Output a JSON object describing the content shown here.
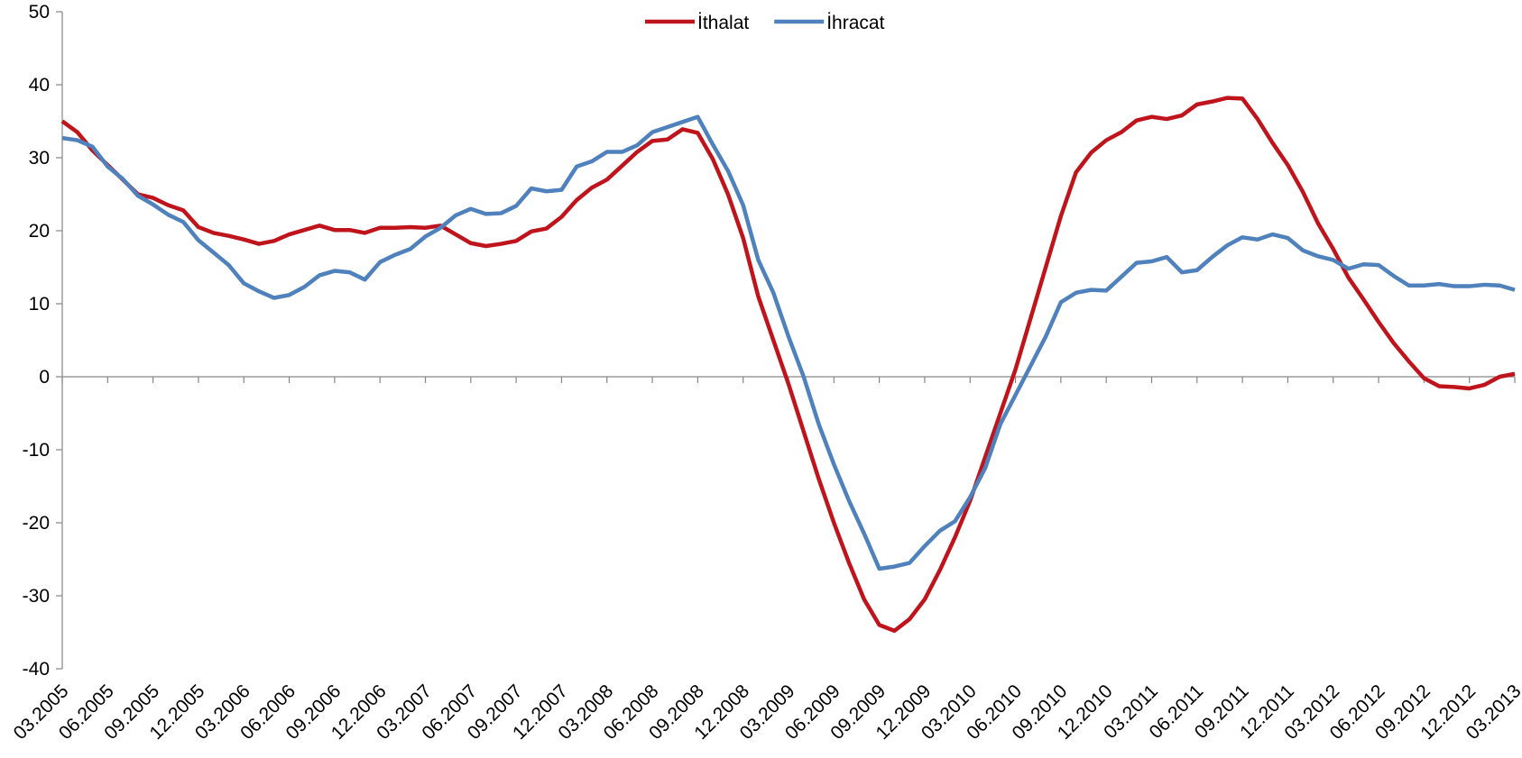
{
  "chart_data": {
    "type": "line",
    "categories": [
      "03.2005",
      null,
      null,
      "06.2005",
      null,
      null,
      "09.2005",
      null,
      null,
      "12.2005",
      null,
      null,
      "03.2006",
      null,
      null,
      "06.2006",
      null,
      null,
      "09.2006",
      null,
      null,
      "12.2006",
      null,
      null,
      "03.2007",
      null,
      null,
      "06.2007",
      null,
      null,
      "09.2007",
      null,
      null,
      "12.2007",
      null,
      null,
      "03.2008",
      null,
      null,
      "06.2008",
      null,
      null,
      "09.2008",
      null,
      null,
      "12.2008",
      null,
      null,
      "03.2009",
      null,
      null,
      "06.2009",
      null,
      null,
      "09.2009",
      null,
      null,
      "12.2009",
      null,
      null,
      "03.2010",
      null,
      null,
      "06.2010",
      null,
      null,
      "09.2010",
      null,
      null,
      "12.2010",
      null,
      null,
      "03.2011",
      null,
      null,
      "06.2011",
      null,
      null,
      "09.2011",
      null,
      null,
      "12.2011",
      null,
      null,
      "03.2012",
      null,
      null,
      "06.2012",
      null,
      null,
      "09.2012",
      null,
      null,
      "12.2012",
      null,
      null,
      "03.2013"
    ],
    "series": [
      {
        "name": "İthalat",
        "color": "#c0141c",
        "values": [
          35,
          33.5,
          31,
          29,
          27,
          25,
          24.5,
          23.5,
          22.8,
          20.5,
          19.7,
          19.3,
          18.8,
          18.2,
          18.6,
          19.5,
          20.1,
          20.7,
          20.1,
          20.1,
          19.7,
          20.4,
          20.4,
          20.5,
          20.4,
          20.7,
          19.5,
          18.3,
          17.9,
          18.2,
          18.6,
          19.9,
          20.3,
          21.9,
          24.2,
          25.9,
          27.0,
          28.9,
          30.8,
          32.3,
          32.5,
          33.9,
          33.4,
          29.8,
          25,
          19,
          11,
          5,
          -1,
          -7.5,
          -14,
          -20,
          -25.5,
          -30.5,
          -34,
          -34.8,
          -33.2,
          -30.5,
          -26.5,
          -22,
          -17,
          -11,
          -5,
          1,
          8,
          15,
          22,
          28,
          30.7,
          32.4,
          33.5,
          35.1,
          35.6,
          35.3,
          35.8,
          37.3,
          37.7,
          38.2,
          38.1,
          35.3,
          32,
          29,
          25.3,
          21,
          17.5,
          13.6,
          10.6,
          7.5,
          4.6,
          2.1,
          -0.2,
          -1.3,
          -1.4,
          -1.6,
          -1.1,
          0,
          0.4
        ]
      },
      {
        "name": "İhracat",
        "color": "#4f81bd",
        "values": [
          32.7,
          32.4,
          31.5,
          28.8,
          27.1,
          24.8,
          23.6,
          22.2,
          21.2,
          18.7,
          17,
          15.3,
          12.8,
          11.7,
          10.8,
          11.2,
          12.3,
          13.9,
          14.5,
          14.3,
          13.3,
          15.7,
          16.7,
          17.5,
          19.2,
          20.4,
          22.1,
          23,
          22.3,
          22.4,
          23.4,
          25.8,
          25.4,
          25.6,
          28.8,
          29.5,
          30.8,
          30.8,
          31.7,
          33.5,
          34.2,
          34.9,
          35.6,
          31.8,
          28.2,
          23.5,
          16,
          11.5,
          5.5,
          0,
          -6.5,
          -12,
          -17,
          -21.5,
          -26.3,
          -26,
          -25.5,
          -23.2,
          -21.1,
          -19.8,
          -16.5,
          -12.5,
          -6.5,
          -2.5,
          1.5,
          5.5,
          10.2,
          11.5,
          11.9,
          11.8,
          13.7,
          15.6,
          15.8,
          16.4,
          14.3,
          14.6,
          16.4,
          18,
          19.1,
          18.8,
          19.5,
          19,
          17.3,
          16.5,
          16,
          14.8,
          15.4,
          15.3,
          13.8,
          12.5,
          12.5,
          12.7,
          12.4,
          12.4,
          12.6,
          12.5,
          11.9
        ]
      }
    ],
    "ylim": [
      -40,
      50
    ],
    "yticks": [
      -40,
      -30,
      -20,
      -10,
      0,
      10,
      20,
      30,
      40,
      50
    ],
    "legend": "top"
  }
}
